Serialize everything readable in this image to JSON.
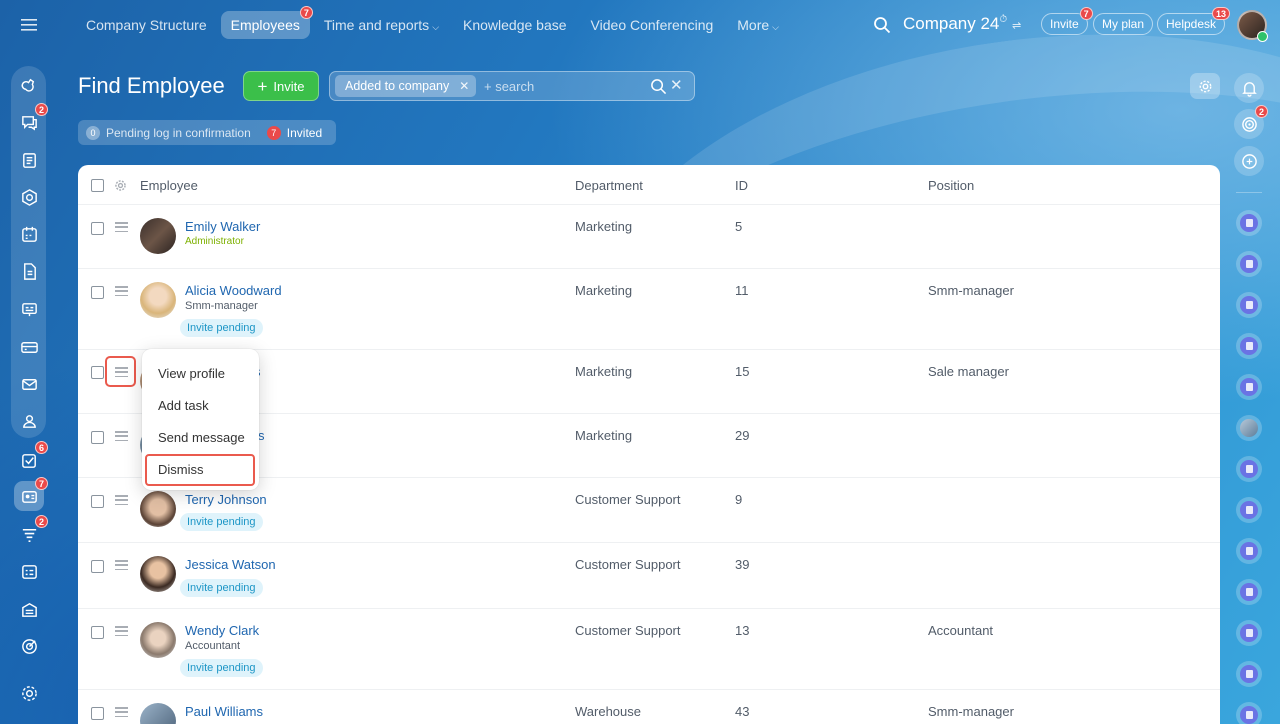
{
  "topnav": {
    "items": [
      {
        "label": "Company Structure"
      },
      {
        "label": "Employees",
        "badge": "7"
      },
      {
        "label": "Time and reports"
      },
      {
        "label": "Knowledge base"
      },
      {
        "label": "Video Conferencing"
      },
      {
        "label": "More"
      }
    ]
  },
  "header": {
    "company_name": "Company 24",
    "invite_label": "Invite",
    "invite_badge": "7",
    "my_plan_label": "My plan",
    "helpdesk_label": "Helpdesk",
    "helpdesk_badge": "13"
  },
  "leftbar": {
    "badges": {
      "chats": "2",
      "tasks": "6",
      "employees": "7",
      "crm": "2"
    }
  },
  "rightbar": {
    "activity_badge": "2"
  },
  "page": {
    "title": "Find Employee",
    "invite_button": "Invite",
    "filter_tag": "Added to company",
    "search_placeholder": "+ search",
    "status": {
      "pending_count": "0",
      "pending_label": "Pending log in confirmation",
      "invited_count": "7",
      "invited_label": "Invited"
    }
  },
  "table": {
    "columns": [
      "Employee",
      "Department",
      "ID",
      "Position"
    ],
    "rows": [
      {
        "name": "Emily Walker",
        "subtitle": "Administrator",
        "pending": "",
        "department": "Marketing",
        "id": "5",
        "position": ""
      },
      {
        "name": "Alicia Woodward",
        "subtitle": "Smm-manager",
        "pending": "Invite pending",
        "department": "Marketing",
        "id": "11",
        "position": "Smm-manager"
      },
      {
        "name": "s",
        "subtitle": "",
        "pending": "",
        "department": "Marketing",
        "id": "15",
        "position": "Sale manager"
      },
      {
        "name": "s",
        "subtitle": "",
        "pending": "",
        "department": "Marketing",
        "id": "29",
        "position": ""
      },
      {
        "name": "Terry Johnson",
        "subtitle": "",
        "pending": "Invite pending",
        "department": "Customer Support",
        "id": "9",
        "position": ""
      },
      {
        "name": "Jessica Watson",
        "subtitle": "",
        "pending": "Invite pending",
        "department": "Customer Support",
        "id": "39",
        "position": ""
      },
      {
        "name": "Wendy Clark",
        "subtitle": "Accountant",
        "pending": "Invite pending",
        "department": "Customer Support",
        "id": "13",
        "position": "Accountant"
      },
      {
        "name": "Paul Williams",
        "subtitle": "",
        "pending": "",
        "department": "Warehouse",
        "id": "43",
        "position": "Smm-manager"
      }
    ]
  },
  "context_menu": {
    "items": [
      "View profile",
      "Add task",
      "Send message",
      "Dismiss"
    ]
  },
  "colors": {
    "accent_green": "#3bbf4a",
    "link_blue": "#2067b0",
    "badge_red": "#ea4a4a",
    "highlight_red": "#ea5a4d",
    "admin_green": "#7db000"
  }
}
